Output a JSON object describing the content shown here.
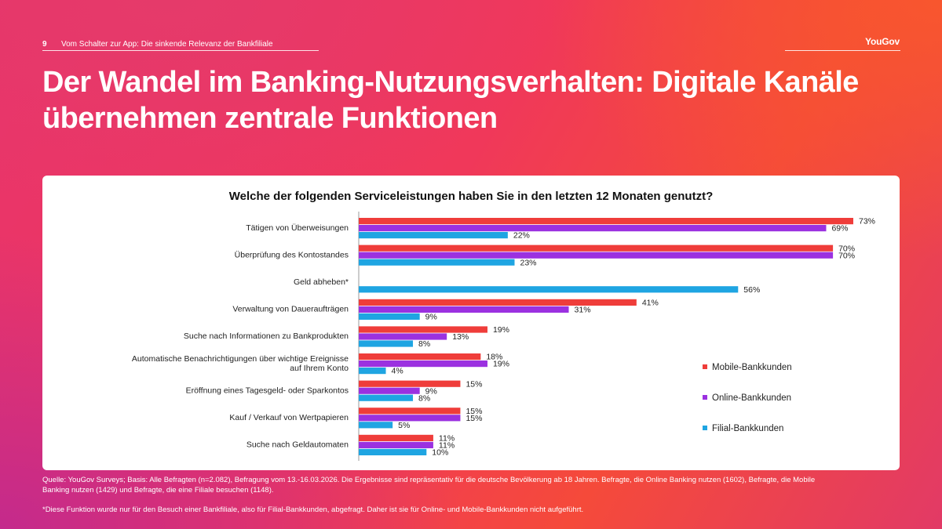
{
  "header": {
    "page_number": "9",
    "running_head": "Vom Schalter zur App: Die sinkende Relevanz der Bankfiliale",
    "logo": "YouGov"
  },
  "title": "Der Wandel im Banking-Nutzungsverhalten: Digitale Kanäle übernehmen zentrale Funktionen",
  "colors": {
    "mobile": "#ef3d3a",
    "online": "#9b31e0",
    "filial": "#1fa5e2"
  },
  "chart_data": {
    "type": "bar",
    "orientation": "horizontal",
    "title": "Welche der folgenden Serviceleistungen haben Sie in den letzten 12 Monaten genutzt?",
    "categories": [
      [
        "Tätigen von Überweisungen"
      ],
      [
        "Überprüfung des Kontostandes"
      ],
      [
        "Geld abheben*"
      ],
      [
        "Verwaltung von Daueraufträgen"
      ],
      [
        "Suche nach Informationen zu Bankprodukten"
      ],
      [
        "Automatische Benachrichtigungen über wichtige Ereignisse",
        "auf Ihrem Konto"
      ],
      [
        "Eröffnung eines Tagesgeld- oder Sparkontos"
      ],
      [
        "Kauf / Verkauf von Wertpapieren"
      ],
      [
        "Suche nach Geldautomaten"
      ]
    ],
    "series": [
      {
        "name": "Mobile-Bankkunden",
        "values": [
          73,
          70,
          null,
          41,
          19,
          18,
          15,
          15,
          11
        ]
      },
      {
        "name": "Online-Bankkunden",
        "values": [
          69,
          70,
          null,
          31,
          13,
          19,
          9,
          15,
          11
        ]
      },
      {
        "name": "Filial-Bankkunden",
        "values": [
          22,
          23,
          56,
          9,
          8,
          4,
          8,
          5,
          10
        ]
      }
    ],
    "value_suffix": "%",
    "xlim": [
      0,
      100
    ],
    "grid": false,
    "legend_position": "right"
  },
  "footnotes": {
    "source": "Quelle: YouGov Surveys; Basis: Alle Befragten (n=2.082), Befragung vom 13.-16.03.2026. Die Ergebnisse sind repräsentativ für die deutsche Bevölkerung ab 18 Jahren. Befragte, die Online Banking nutzen (1602), Befragte, die Mobile Banking nutzen (1429) und Befragte, die eine Filiale besuchen (1148).",
    "note": "*Diese Funktion wurde nur für den Besuch einer Bankfiliale, also für Filial-Bankkunden, abgefragt. Daher ist sie für Online- und Mobile-Bankkunden nicht aufgeführt."
  }
}
